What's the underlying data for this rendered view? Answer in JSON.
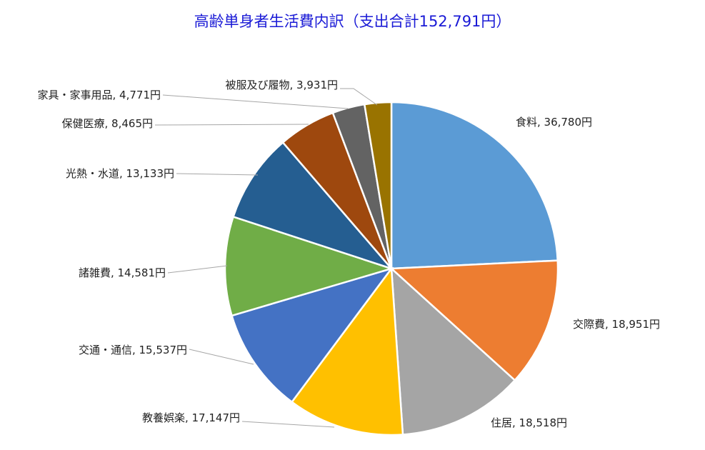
{
  "chart_data": {
    "type": "pie",
    "title": "高齢単身者生活費内訳（支出合計152,791円）",
    "unit": "円",
    "start_angle_deg": 0,
    "direction": "clockwise",
    "slices": [
      {
        "label": "食料",
        "value": 36780,
        "display": "食料, 36,780円",
        "color": "#5b9bd5"
      },
      {
        "label": "交際費",
        "value": 18951,
        "display": "交際費, 18,951円",
        "color": "#ed7d31"
      },
      {
        "label": "住居",
        "value": 18518,
        "display": "住居, 18,518円",
        "color": "#a5a5a5"
      },
      {
        "label": "教養娯楽",
        "value": 17147,
        "display": "教養娯楽, 17,147円",
        "color": "#ffc000"
      },
      {
        "label": "交通・通信",
        "value": 15537,
        "display": "交通・通信, 15,537円",
        "color": "#4472c4"
      },
      {
        "label": "諸雑費",
        "value": 14581,
        "display": "諸雑費, 14,581円",
        "color": "#70ad47"
      },
      {
        "label": "光熱・水道",
        "value": 13133,
        "display": "光熱・水道, 13,133円",
        "color": "#255e91"
      },
      {
        "label": "保健医療",
        "value": 8465,
        "display": "保健医療, 8,465円",
        "color": "#9e480e"
      },
      {
        "label": "家具・家事用品",
        "value": 4771,
        "display": "家具・家事用品, 4,771円",
        "color": "#636363"
      },
      {
        "label": "被服及び履物",
        "value": 3931,
        "display": "被服及び履物, 3,931円",
        "color": "#997300"
      }
    ]
  }
}
